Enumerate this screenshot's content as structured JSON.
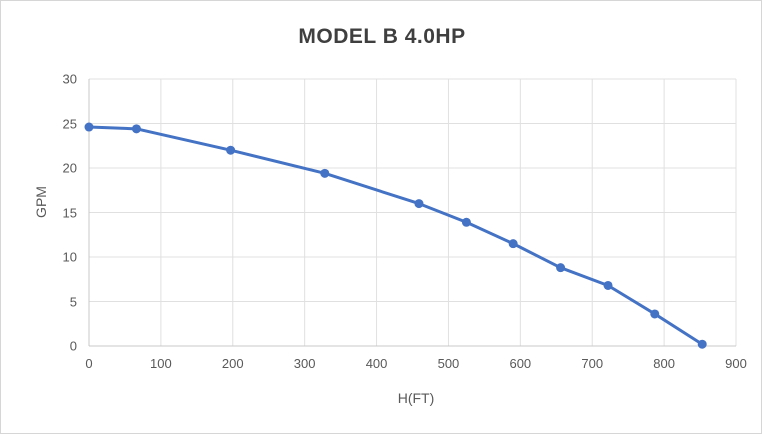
{
  "chart_data": {
    "type": "line",
    "title": "MODEL B 4.0HP",
    "xlabel": "H(FT)",
    "ylabel": "GPM",
    "x": [
      0,
      66,
      197,
      328,
      459,
      525,
      590,
      656,
      722,
      787,
      853
    ],
    "y": [
      24.6,
      24.4,
      22.0,
      19.4,
      16.0,
      13.9,
      11.5,
      8.8,
      6.8,
      3.6,
      0.2
    ],
    "xlim": [
      0,
      900
    ],
    "ylim": [
      0,
      30
    ],
    "xticks": [
      0,
      100,
      200,
      300,
      400,
      500,
      600,
      700,
      800,
      900
    ],
    "yticks": [
      0,
      5,
      10,
      15,
      20,
      25,
      30
    ],
    "grid": true,
    "legend_position": "none",
    "series_name": "MODEL B 4.0HP",
    "colors": {
      "line": "#4472c4",
      "marker": "#4472c4",
      "gridline": "#e0e0e0",
      "axis_line": "#c9c9c9",
      "tick_text": "#595959",
      "title_text": "#3f3f3f"
    },
    "style": {
      "line_width": 3,
      "marker_radius": 4.5
    }
  }
}
